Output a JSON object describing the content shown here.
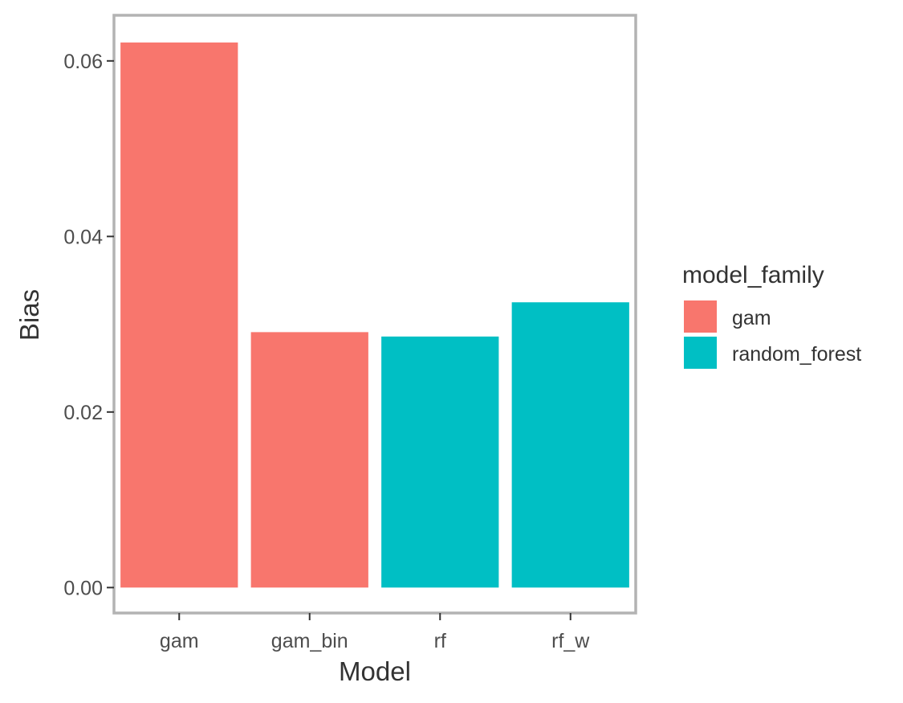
{
  "chart_data": {
    "type": "bar",
    "xlabel": "Model",
    "ylabel": "Bias",
    "categories": [
      "gam",
      "gam_bin",
      "rf",
      "rf_w"
    ],
    "values": [
      0.0621,
      0.0291,
      0.0286,
      0.0325
    ],
    "fill_group": [
      "gam",
      "gam",
      "random_forest",
      "random_forest"
    ],
    "ylim": [
      -0.0029,
      0.0652
    ],
    "yticks": [
      0.0,
      0.02,
      0.04,
      0.06
    ],
    "ytick_labels": [
      "0.00",
      "0.02",
      "0.04",
      "0.06"
    ],
    "grid": false,
    "legend": {
      "title": "model_family",
      "placement": "right",
      "entries": [
        {
          "label": "gam",
          "color": "#F8766D"
        },
        {
          "label": "random_forest",
          "color": "#00BFC4"
        }
      ]
    },
    "colors": {
      "gam": "#F8766D",
      "random_forest": "#00BFC4",
      "panel_border": "#b3b3b3"
    }
  }
}
